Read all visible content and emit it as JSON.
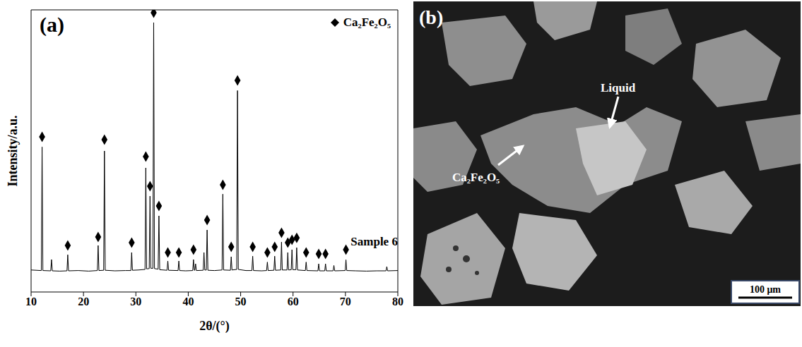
{
  "chart_data": {
    "type": "line",
    "title": "(a)",
    "x_label": "2θ/(°)",
    "y_label": "Intensity/a.u.",
    "color": "#000000",
    "xlim": [
      10,
      80
    ],
    "xticks": [
      10,
      20,
      30,
      40,
      50,
      60,
      70,
      80
    ],
    "ylim": [
      0,
      100
    ],
    "tick_labels": "x",
    "grid": false,
    "legend": "upper right",
    "x": [
      10,
      11.95,
      12.1,
      12.25,
      13.75,
      13.9,
      14.05,
      15.5,
      16.85,
      17.0,
      17.15,
      19,
      21,
      22.65,
      22.8,
      22.95,
      23.85,
      24.0,
      24.15,
      26,
      28,
      29.05,
      29.2,
      29.35,
      30.5,
      31.75,
      31.9,
      32.05,
      32.55,
      32.7,
      32.85,
      33.25,
      33.4,
      33.55,
      34.25,
      34.4,
      34.55,
      35.95,
      36.1,
      36.25,
      38.05,
      38.2,
      38.35,
      39.5,
      40.85,
      41.0,
      41.15,
      41.25,
      41.4,
      41.55,
      42.85,
      43.0,
      43.15,
      43.45,
      43.6,
      43.75,
      45,
      46.45,
      46.6,
      46.75,
      48.05,
      48.2,
      48.35,
      49.25,
      49.4,
      49.55,
      51,
      52.15,
      52.3,
      52.45,
      54,
      54.95,
      55.1,
      55.25,
      56.35,
      56.5,
      56.65,
      57.65,
      57.8,
      57.95,
      58.85,
      59.0,
      59.15,
      59.65,
      59.8,
      59.95,
      60.55,
      60.7,
      60.85,
      62.35,
      62.5,
      62.65,
      64.75,
      64.9,
      65.05,
      66.05,
      66.2,
      66.35,
      67.65,
      67.8,
      67.95,
      69.95,
      70.1,
      70.25,
      72,
      74,
      76,
      77.75,
      77.9,
      78.05,
      80
    ],
    "values": [
      7.8,
      7.6,
      51.4,
      7.6,
      7.5,
      11.5,
      7.5,
      7.4,
      7.5,
      13.2,
      7.5,
      7.6,
      7.4,
      7.6,
      16.5,
      7.6,
      7.7,
      50.0,
      7.7,
      7.5,
      7.6,
      7.6,
      14.0,
      7.7,
      7.8,
      8.0,
      44.0,
      8.2,
      8.3,
      34.0,
      8.4,
      8.4,
      95.5,
      8.3,
      8.1,
      27.0,
      7.9,
      7.7,
      11.0,
      7.7,
      7.6,
      11.0,
      7.6,
      7.5,
      7.6,
      11.5,
      7.7,
      7.7,
      10.0,
      7.6,
      7.7,
      14.0,
      7.8,
      7.8,
      22.0,
      7.7,
      7.6,
      7.8,
      34.7,
      7.8,
      7.7,
      12.5,
      7.8,
      8.0,
      71.4,
      8.0,
      7.6,
      7.6,
      12.7,
      7.6,
      7.5,
      7.6,
      10.6,
      7.6,
      7.7,
      12.7,
      7.7,
      7.8,
      17.7,
      7.8,
      7.8,
      14.0,
      7.8,
      7.9,
      15.0,
      7.9,
      7.9,
      15.7,
      7.8,
      7.6,
      10.6,
      7.6,
      7.5,
      10.0,
      7.5,
      7.5,
      10.0,
      7.5,
      7.5,
      9.4,
      7.5,
      7.6,
      11.4,
      7.6,
      7.5,
      7.4,
      7.5,
      7.5,
      9.0,
      7.5,
      7.6
    ],
    "peak_markers": {
      "name": "Ca₂Fe₂O₅",
      "type": "scatter",
      "marker": "diamond",
      "color": "#000000",
      "x": [
        12.1,
        17.0,
        22.8,
        24.0,
        29.2,
        31.9,
        32.7,
        33.4,
        34.4,
        36.1,
        38.2,
        41.0,
        43.6,
        46.6,
        48.2,
        49.4,
        52.3,
        55.1,
        56.5,
        57.8,
        59.0,
        59.8,
        60.7,
        62.5,
        64.9,
        66.2,
        70.1
      ],
      "values": [
        55,
        16.5,
        19.5,
        54,
        17.5,
        48,
        37.5,
        99,
        30.5,
        14,
        14,
        15,
        25.5,
        38,
        16,
        75,
        16,
        14,
        16,
        21,
        17.5,
        18.5,
        19.2,
        14,
        13.5,
        13.5,
        15
      ]
    },
    "annotations": [
      {
        "text": "Sample 6",
        "x": 75.5,
        "y": 18
      }
    ]
  },
  "micrograph": {
    "panel_label": "(b)",
    "annotations": [
      "Liquid",
      "Ca₂Fe₂O₅"
    ],
    "scale_bar": "100 μm"
  }
}
